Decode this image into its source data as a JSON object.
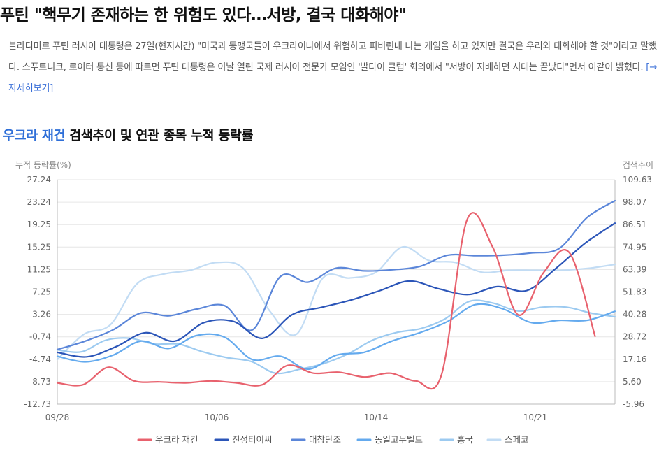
{
  "article": {
    "headline": "푸틴 \"핵무기 존재하는 한 위험도 있다…서방, 결국 대화해야\"",
    "summary": "블라디미르 푸틴 러시아 대통령은 27일(현지시간) \"미국과 동맹국들이 우크라이나에서 위험하고 피비린내 나는 게임을 하고 있지만 결국은 우리와 대화해야 할 것\"이라고 말했다. 스푸트니크, 로이터 통신 등에 따르면 푸틴 대통령은 이날 열린 국제 러시아 전문가 모임인 '발다이 클럽' 회의에서 \"서방이 지배하던 시대는 끝났다\"면서 이같이 밝혔다.",
    "more_link": "[→자세히보기]"
  },
  "chart_title": {
    "highlight": "우크라 재건",
    "rest": " 검색추이 및 연관 종목 누적 등락률"
  },
  "chart_data": {
    "type": "line",
    "y_left_label": "누적 등락률(%)",
    "y_right_label": "검색추이",
    "y_left_ticks": [
      "27.24",
      "23.24",
      "19.25",
      "15.25",
      "11.25",
      "7.25",
      "3.26",
      "-0.74",
      "-4.74",
      "-8.73",
      "-12.73"
    ],
    "y_right_ticks": [
      "109.63",
      "98.07",
      "86.51",
      "74.95",
      "63.39",
      "51.83",
      "40.28",
      "28.72",
      "17.16",
      "5.60",
      "-5.96"
    ],
    "ylim_left": [
      -12.73,
      27.24
    ],
    "ylim_right": [
      -5.96,
      109.63
    ],
    "x_ticks": [
      "09/28",
      "10/06",
      "10/14",
      "10/21"
    ],
    "x_tick_index": [
      0,
      8,
      16,
      24
    ],
    "grid": "horizontal",
    "legend_position": "bottom",
    "series": [
      {
        "name": "우크라 재건",
        "color": "#e8616d",
        "axis": "right",
        "values": [
          5,
          4,
          13,
          6,
          5.5,
          5,
          6,
          5,
          4,
          14,
          10,
          10.5,
          8,
          10,
          6,
          9,
          89,
          75,
          40,
          62,
          72,
          29
        ]
      },
      {
        "name": "진성티이씨",
        "color": "#2b55b8",
        "axis": "left",
        "values": [
          -3.5,
          -4.3,
          -2.5,
          0.0,
          -1.5,
          1.8,
          2.0,
          -1.0,
          3.2,
          4.5,
          5.8,
          7.5,
          9.2,
          7.8,
          6.8,
          8.2,
          7.5,
          11.5,
          16.0,
          19.5
        ]
      },
      {
        "name": "대창단조",
        "color": "#5b86d9",
        "axis": "left",
        "values": [
          -3.0,
          -1.5,
          0.5,
          3.5,
          3.0,
          4.2,
          4.8,
          0.5,
          10.0,
          9.0,
          11.5,
          11.0,
          11.2,
          11.8,
          13.8,
          13.7,
          13.8,
          14.2,
          15.0,
          20.5,
          23.5
        ]
      },
      {
        "name": "동일고무벨트",
        "color": "#64aaee",
        "axis": "left",
        "values": [
          -4.2,
          -5.2,
          -4.0,
          -1.5,
          -2.8,
          -0.5,
          -0.8,
          -4.8,
          -4.2,
          -6.5,
          -4.0,
          -3.5,
          -1.5,
          0.0,
          2.0,
          5.0,
          4.2,
          1.8,
          2.2,
          2.2,
          3.8
        ]
      },
      {
        "name": "흥국",
        "color": "#9ccaf0",
        "axis": "right",
        "values": [
          22,
          21,
          27,
          28,
          25,
          25,
          21,
          18,
          16,
          10,
          12,
          15,
          20,
          27,
          31,
          33,
          38,
          47,
          46,
          42,
          44,
          44,
          41,
          39
        ]
      },
      {
        "name": "스페코",
        "color": "#c2dcf4",
        "axis": "right",
        "values": [
          17,
          30,
          35,
          56,
          61,
          63,
          67,
          64,
          42,
          30,
          59,
          59,
          62,
          75,
          68,
          67,
          62,
          63,
          63,
          63,
          64,
          66
        ]
      }
    ]
  },
  "colors": {
    "title_highlight": "#2f6fd8",
    "grid": "#e6e6e6",
    "axis": "#bbbbbb"
  }
}
